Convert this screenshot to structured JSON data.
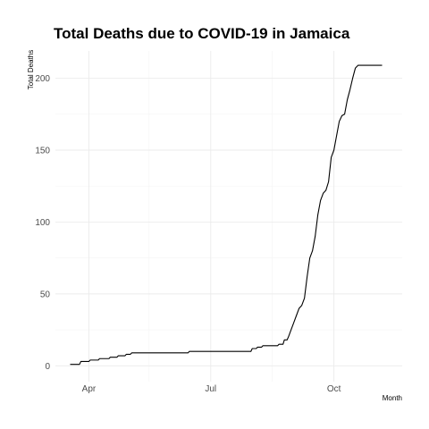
{
  "chart_data": {
    "type": "line",
    "title": "Total Deaths due to COVID-19 in Jamaica",
    "xlabel": "Month",
    "ylabel": "Total Deaths",
    "x_ticks": [
      {
        "date": "2020-04-01",
        "label": "Apr"
      },
      {
        "date": "2020-07-01",
        "label": "Jul"
      },
      {
        "date": "2020-10-01",
        "label": "Oct"
      }
    ],
    "x_minor_ticks": [
      "2020-05-16",
      "2020-08-16"
    ],
    "xlim": [
      "2020-03-07",
      "2020-11-21"
    ],
    "ylim": [
      -11,
      219
    ],
    "y_ticks": [
      0,
      50,
      100,
      150,
      200
    ],
    "y_minor_ticks": [
      25,
      75,
      125,
      175
    ],
    "grid": true,
    "legend": "none",
    "line_color": "#000000",
    "series": [
      {
        "x": [
          "2020-03-18",
          "2020-03-25",
          "2020-03-26",
          "2020-04-01",
          "2020-04-02",
          "2020-04-08",
          "2020-04-09",
          "2020-04-16",
          "2020-04-17",
          "2020-04-22",
          "2020-04-23",
          "2020-04-28",
          "2020-04-29",
          "2020-05-02",
          "2020-05-03",
          "2020-05-06",
          "2020-05-07",
          "2020-06-14",
          "2020-06-15",
          "2020-07-31",
          "2020-08-01",
          "2020-08-04",
          "2020-08-05",
          "2020-08-08",
          "2020-08-09",
          "2020-08-20",
          "2020-08-21",
          "2020-08-24",
          "2020-08-25",
          "2020-08-27",
          "2020-08-28",
          "2020-08-30",
          "2020-09-01",
          "2020-09-03",
          "2020-09-05",
          "2020-09-07",
          "2020-09-09",
          "2020-09-11",
          "2020-09-13",
          "2020-09-15",
          "2020-09-17",
          "2020-09-19",
          "2020-09-21",
          "2020-09-23",
          "2020-09-25",
          "2020-09-27",
          "2020-09-29",
          "2020-10-01",
          "2020-10-03",
          "2020-10-05",
          "2020-10-07",
          "2020-10-09",
          "2020-10-11",
          "2020-10-13",
          "2020-10-15",
          "2020-10-17",
          "2020-10-19",
          "2020-10-21",
          "2020-10-23",
          "2020-10-25",
          "2020-10-27",
          "2020-10-29",
          "2020-10-31",
          "2020-11-02",
          "2020-11-04",
          "2020-11-06"
        ],
        "y": [
          1,
          1,
          3,
          3,
          4,
          4,
          5,
          5,
          6,
          6,
          7,
          7,
          8,
          8,
          9,
          9,
          9,
          9,
          10,
          10,
          12,
          12,
          13,
          13,
          14,
          14,
          15,
          15,
          18,
          18,
          20,
          25,
          30,
          35,
          40,
          42,
          47,
          62,
          75,
          80,
          90,
          105,
          115,
          120,
          122,
          128,
          145,
          150,
          160,
          170,
          174,
          175,
          185,
          192,
          200,
          207,
          209,
          209,
          209,
          209,
          209,
          209,
          209,
          209,
          209,
          209
        ]
      }
    ]
  }
}
